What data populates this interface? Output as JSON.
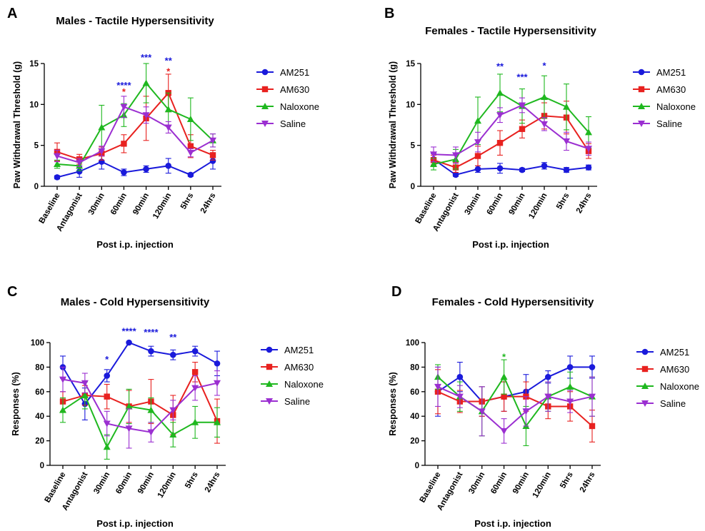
{
  "chart_data": [
    {
      "panel": "A",
      "type": "line",
      "title": "Males - Tactile Hypersensitivity",
      "xlabel": "Post i.p. injection",
      "ylabel": "Paw Withdrawal Threshold (g)",
      "categories": [
        "Baseline",
        "Antagonist",
        "30min",
        "60min",
        "90min",
        "120min",
        "5hrs",
        "24hrs"
      ],
      "ylim": [
        0,
        15
      ],
      "yticks": [
        0,
        5,
        10,
        15
      ],
      "series": [
        {
          "name": "AM251",
          "color": "#1a1adb",
          "marker": "circle",
          "values": [
            1.1,
            1.8,
            3.0,
            1.7,
            2.1,
            2.5,
            1.4,
            3.1
          ],
          "err": [
            0.2,
            0.7,
            0.9,
            0.4,
            0.4,
            0.9,
            0.2,
            1.0
          ]
        },
        {
          "name": "AM630",
          "color": "#e8211f",
          "marker": "square",
          "values": [
            4.2,
            3.3,
            4.0,
            5.2,
            8.3,
            11.4,
            4.9,
            3.8
          ],
          "err": [
            1.1,
            0.6,
            0.8,
            1.1,
            2.7,
            2.3,
            1.4,
            0.6
          ]
        },
        {
          "name": "Naloxone",
          "color": "#1fb81f",
          "marker": "triangle-up",
          "values": [
            2.7,
            2.5,
            7.2,
            8.7,
            12.6,
            9.4,
            8.2,
            5.6
          ],
          "err": [
            0.5,
            0.6,
            2.7,
            1.4,
            2.4,
            2.0,
            2.6,
            0.8
          ]
        },
        {
          "name": "Saline",
          "color": "#9b2fd1",
          "marker": "triangle-down",
          "values": [
            3.7,
            2.9,
            4.3,
            9.7,
            8.7,
            7.2,
            4.1,
            5.6
          ],
          "err": [
            0.7,
            0.5,
            0.6,
            1.3,
            1.0,
            0.7,
            0.5,
            0.8
          ]
        }
      ],
      "annotations": [
        {
          "x": "60min",
          "text": "****",
          "color": "#1a1adb",
          "y": 12.3
        },
        {
          "x": "60min",
          "text": "*",
          "color": "#e8211f",
          "y": 11.5
        },
        {
          "x": "90min",
          "text": "***",
          "color": "#1a1adb",
          "y": 15.7
        },
        {
          "x": "120min",
          "text": "**",
          "color": "#1a1adb",
          "y": 15.3
        },
        {
          "x": "120min",
          "text": "*",
          "color": "#e8211f",
          "y": 14.0
        }
      ]
    },
    {
      "panel": "B",
      "type": "line",
      "title": "Females - Tactile Hypersensitivity",
      "xlabel": "Post i.p. injection",
      "ylabel": "Paw Withdrawal Threshold (g)",
      "categories": [
        "Baseline",
        "Antagonist",
        "30min",
        "60min",
        "90min",
        "120min",
        "5hrs",
        "24hrs"
      ],
      "ylim": [
        0,
        15
      ],
      "yticks": [
        0,
        5,
        10,
        15
      ],
      "series": [
        {
          "name": "AM251",
          "color": "#1a1adb",
          "marker": "circle",
          "values": [
            3.3,
            1.4,
            2.1,
            2.2,
            2.0,
            2.5,
            2.0,
            2.3
          ],
          "err": [
            0.7,
            0.2,
            0.4,
            0.6,
            0.2,
            0.4,
            0.3,
            0.3
          ]
        },
        {
          "name": "AM630",
          "color": "#e8211f",
          "marker": "square",
          "values": [
            3.2,
            2.3,
            3.7,
            5.3,
            7.0,
            8.6,
            8.4,
            4.3
          ],
          "err": [
            0.6,
            0.6,
            1.2,
            1.5,
            1.1,
            1.6,
            2.0,
            0.9
          ]
        },
        {
          "name": "Naloxone",
          "color": "#1fb81f",
          "marker": "triangle-up",
          "values": [
            2.7,
            3.3,
            8.0,
            11.4,
            9.8,
            10.9,
            9.7,
            6.6
          ],
          "err": [
            0.7,
            1.2,
            2.9,
            2.3,
            2.1,
            2.6,
            2.8,
            1.9
          ]
        },
        {
          "name": "Saline",
          "color": "#9b2fd1",
          "marker": "triangle-down",
          "values": [
            3.9,
            3.8,
            5.4,
            8.7,
            9.9,
            7.6,
            5.5,
            4.6
          ],
          "err": [
            0.9,
            1.0,
            1.2,
            0.9,
            0.9,
            0.8,
            1.1,
            0.8
          ]
        }
      ],
      "annotations": [
        {
          "x": "60min",
          "text": "**",
          "color": "#1a1adb",
          "y": 14.6
        },
        {
          "x": "90min",
          "text": "***",
          "color": "#1a1adb",
          "y": 13.3
        },
        {
          "x": "120min",
          "text": "*",
          "color": "#1a1adb",
          "y": 14.7
        }
      ]
    },
    {
      "panel": "C",
      "type": "line",
      "title": "Males - Cold Hypersensitivity",
      "xlabel": "Post i.p. injection",
      "ylabel": "Responses (%)",
      "categories": [
        "Baseline",
        "Antagonist",
        "30min",
        "60min",
        "90min",
        "120min",
        "5hrs",
        "24hrs"
      ],
      "ylim": [
        0,
        100
      ],
      "yticks": [
        0,
        20,
        40,
        60,
        80,
        100
      ],
      "series": [
        {
          "name": "AM251",
          "color": "#1a1adb",
          "marker": "circle",
          "values": [
            80,
            50,
            73,
            100,
            93,
            90,
            93,
            83
          ],
          "err": [
            9,
            13,
            5,
            0,
            4,
            4,
            4,
            10
          ]
        },
        {
          "name": "AM630",
          "color": "#e8211f",
          "marker": "square",
          "values": [
            52,
            57,
            56,
            48,
            52,
            41,
            76,
            36
          ],
          "err": [
            8,
            8,
            10,
            13,
            18,
            16,
            8,
            18
          ]
        },
        {
          "name": "Naloxone",
          "color": "#1fb81f",
          "marker": "triangle-up",
          "values": [
            45,
            57,
            15,
            48,
            45,
            25,
            35,
            35
          ],
          "err": [
            10,
            11,
            10,
            14,
            10,
            10,
            13,
            12
          ]
        },
        {
          "name": "Saline",
          "color": "#9b2fd1",
          "marker": "triangle-down",
          "values": [
            70,
            67,
            34,
            30,
            27,
            45,
            63,
            67
          ],
          "err": [
            10,
            8,
            10,
            16,
            8,
            8,
            10,
            10
          ]
        }
      ],
      "annotations": [
        {
          "x": "30min",
          "text": "*",
          "color": "#1a1adb",
          "y": 86
        },
        {
          "x": "60min",
          "text": "****",
          "color": "#1a1adb",
          "y": 109
        },
        {
          "x": "90min",
          "text": "****",
          "color": "#1a1adb",
          "y": 108
        },
        {
          "x": "120min",
          "text": "**",
          "color": "#1a1adb",
          "y": 104
        }
      ]
    },
    {
      "panel": "D",
      "type": "line",
      "title": "Females - Cold Hypersensitivity",
      "xlabel": "Post i.p. injection",
      "ylabel": "Responses (%)",
      "categories": [
        "Baseline",
        "Antagonist",
        "30min",
        "60min",
        "90min",
        "120min",
        "5hrs",
        "24hrs"
      ],
      "ylim": [
        0,
        100
      ],
      "yticks": [
        0,
        20,
        40,
        60,
        80,
        100
      ],
      "series": [
        {
          "name": "AM251",
          "color": "#1a1adb",
          "marker": "circle",
          "values": [
            60,
            72,
            52,
            56,
            60,
            72,
            80,
            80
          ],
          "err": [
            20,
            12,
            12,
            12,
            14,
            5,
            9,
            9
          ]
        },
        {
          "name": "AM630",
          "color": "#e8211f",
          "marker": "square",
          "values": [
            60,
            52,
            52,
            56,
            56,
            48,
            48,
            32
          ],
          "err": [
            18,
            9,
            12,
            12,
            12,
            10,
            12,
            13
          ]
        },
        {
          "name": "Naloxone",
          "color": "#1fb81f",
          "marker": "triangle-up",
          "values": [
            72,
            56,
            44,
            72,
            32,
            56,
            64,
            56
          ],
          "err": [
            10,
            12,
            20,
            14,
            16,
            12,
            12,
            16
          ]
        },
        {
          "name": "Saline",
          "color": "#9b2fd1",
          "marker": "triangle-down",
          "values": [
            64,
            56,
            44,
            28,
            44,
            56,
            52,
            56
          ],
          "err": [
            16,
            9,
            20,
            10,
            12,
            12,
            9,
            16
          ]
        }
      ],
      "annotations": [
        {
          "x": "60min",
          "text": "*",
          "color": "#1fb81f",
          "y": 88
        }
      ]
    }
  ]
}
